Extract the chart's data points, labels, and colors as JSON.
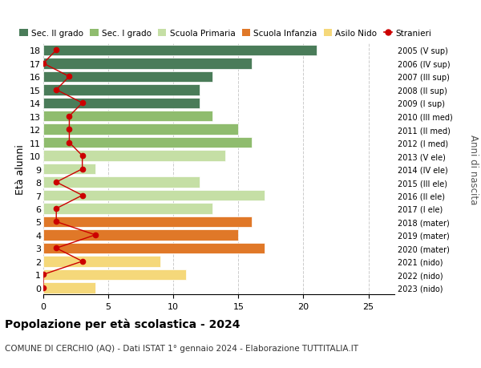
{
  "ages": [
    18,
    17,
    16,
    15,
    14,
    13,
    12,
    11,
    10,
    9,
    8,
    7,
    6,
    5,
    4,
    3,
    2,
    1,
    0
  ],
  "bar_values": [
    21,
    16,
    13,
    12,
    12,
    13,
    15,
    16,
    14,
    4,
    12,
    17,
    13,
    16,
    15,
    17,
    9,
    11,
    4
  ],
  "bar_colors": [
    "#4a7c59",
    "#4a7c59",
    "#4a7c59",
    "#4a7c59",
    "#4a7c59",
    "#8fbc6e",
    "#8fbc6e",
    "#8fbc6e",
    "#c5dfa5",
    "#c5dfa5",
    "#c5dfa5",
    "#c5dfa5",
    "#c5dfa5",
    "#e07828",
    "#e07828",
    "#e07828",
    "#f5d87a",
    "#f5d87a",
    "#f5d87a"
  ],
  "stranieri_values": [
    1,
    0,
    2,
    1,
    3,
    2,
    2,
    2,
    3,
    3,
    1,
    3,
    1,
    1,
    4,
    1,
    3,
    0,
    0
  ],
  "right_labels": [
    "2005 (V sup)",
    "2006 (IV sup)",
    "2007 (III sup)",
    "2008 (II sup)",
    "2009 (I sup)",
    "2010 (III med)",
    "2011 (II med)",
    "2012 (I med)",
    "2013 (V ele)",
    "2014 (IV ele)",
    "2015 (III ele)",
    "2016 (II ele)",
    "2017 (I ele)",
    "2018 (mater)",
    "2019 (mater)",
    "2020 (mater)",
    "2021 (nido)",
    "2022 (nido)",
    "2023 (nido)"
  ],
  "legend_labels": [
    "Sec. II grado",
    "Sec. I grado",
    "Scuola Primaria",
    "Scuola Infanzia",
    "Asilo Nido",
    "Stranieri"
  ],
  "legend_colors": [
    "#4a7c59",
    "#8fbc6e",
    "#c5dfa5",
    "#e07828",
    "#f5d87a",
    "#cc0000"
  ],
  "ylabel_left": "Età alunni",
  "ylabel_right": "Anni di nascita",
  "title": "Popolazione per età scolastica - 2024",
  "subtitle": "COMUNE DI CERCHIO (AQ) - Dati ISTAT 1° gennaio 2024 - Elaborazione TUTTITALIA.IT",
  "xlim": [
    0,
    27
  ],
  "xticks": [
    0,
    5,
    10,
    15,
    20,
    25
  ],
  "background_color": "#ffffff",
  "bar_height": 0.82,
  "stranieri_color": "#cc0000",
  "grid_color": "#cccccc"
}
